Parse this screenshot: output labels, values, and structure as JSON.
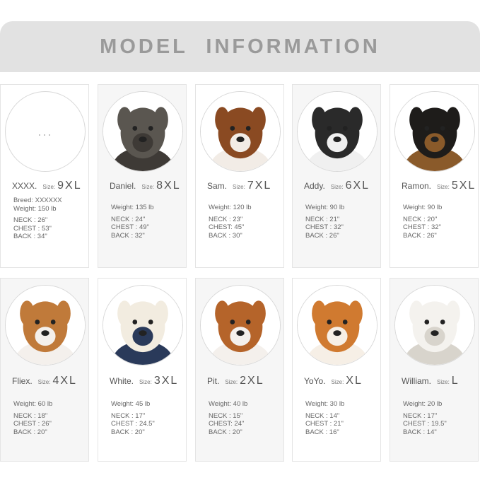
{
  "title": "MODEL INFORMATION",
  "size_label": "Size:",
  "cards": [
    {
      "name": "XXXX.",
      "size": "9XL",
      "breed": "Breed:  XXXXXX",
      "weight": "Weight: 150 lb",
      "neck": "NECK :  26\"",
      "chest": "CHEST :  53\"",
      "back": "BACK :  34\"",
      "photo": "placeholder-dots",
      "placeholder": "...",
      "colors": [
        "#ffffff",
        "#ffffff"
      ]
    },
    {
      "name": "Daniel.",
      "size": "8XL",
      "weight": "Weight: 135 lb",
      "neck": "NECK :  24\"",
      "chest": "CHEST :  49\"",
      "back": "BACK :  32\"",
      "photo": "great-dane",
      "colors": [
        "#5a5650",
        "#3e3a36"
      ]
    },
    {
      "name": "Sam.",
      "size": "7XL",
      "weight": "Weight: 120 lb",
      "neck": "NECK :  23\"",
      "chest": "CHEST:  45\"",
      "back": "BACK :  30\"",
      "photo": "saint-bernard",
      "colors": [
        "#8a4a22",
        "#f2ece6"
      ]
    },
    {
      "name": "Addy.",
      "size": "6XL",
      "weight": "Weight: 90 lb",
      "neck": "NECK :  21\"",
      "chest": "CHEST :  32\"",
      "back": "BACK :  26\"",
      "photo": "malamute",
      "colors": [
        "#2a2a2a",
        "#f0f0f0"
      ]
    },
    {
      "name": "Ramon.",
      "size": "5XL",
      "weight": "Weight: 90 lb",
      "neck": "NECK :  20\"",
      "chest": "CHEST :  32\"",
      "back": "BACK :  26\"",
      "photo": "rottweiler",
      "colors": [
        "#1e1c1a",
        "#8a5a2a"
      ]
    },
    {
      "name": "Fliex.",
      "size": "4XL",
      "weight": "Weight: 60 lb",
      "neck": "NECK :  18\"",
      "chest": "CHEST :  26\"",
      "back": "BACK :  20\"",
      "photo": "pit-bull",
      "colors": [
        "#c07a3a",
        "#f4f0ec"
      ]
    },
    {
      "name": "White.",
      "size": "3XL",
      "weight": "Weight: 45 lb",
      "neck": "NECK :  17\"",
      "chest": "CHEST :  24.5\"",
      "back": "BACK :  20\"",
      "photo": "labrador",
      "colors": [
        "#f2ece0",
        "#2a3a5a"
      ]
    },
    {
      "name": "Pit.",
      "size": "2XL",
      "weight": "Weight: 40 lb",
      "neck": "NECK :  15\"",
      "chest": "CHEST:  24\"",
      "back": "BACK :  20\"",
      "photo": "bull-terrier",
      "colors": [
        "#b5642a",
        "#f4f0ec"
      ]
    },
    {
      "name": "YoYo.",
      "size": "XL",
      "weight": "Weight: 30 lb",
      "neck": "NECK :  14\"",
      "chest": "CHEST :  21\"",
      "back": "BACK :  16\"",
      "photo": "shiba-inu",
      "colors": [
        "#d07a30",
        "#f6efe6"
      ]
    },
    {
      "name": "William.",
      "size": "L",
      "weight": "Weight: 20 lb",
      "neck": "NECK :  17\"",
      "chest": "CHEST :  19.5\"",
      "back": "BACK :  14\"",
      "photo": "westie",
      "colors": [
        "#f4f2ee",
        "#d8d4cc"
      ]
    }
  ]
}
